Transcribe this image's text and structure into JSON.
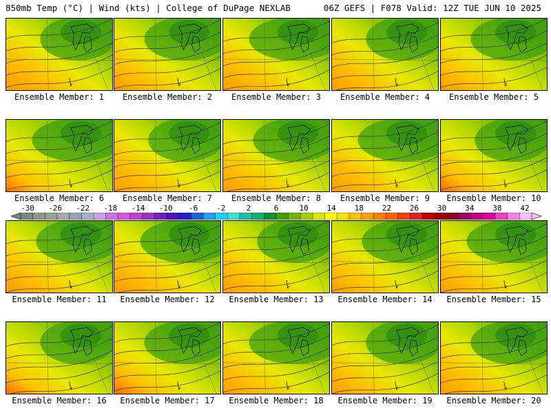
{
  "header": {
    "left": "850mb Temp (°C) | Wind (kts) | College of DuPage NEXLAB",
    "right": "06Z GEFS | F078 Valid: 12Z TUE JUN 10 2025"
  },
  "caption_prefix": "Ensemble Member:",
  "members": [
    "1",
    "2",
    "3",
    "4",
    "5",
    "6",
    "7",
    "8",
    "9",
    "10",
    "11",
    "12",
    "13",
    "14",
    "15",
    "16",
    "17",
    "18",
    "19",
    "20"
  ],
  "colorbar": {
    "labels": [
      "-30",
      "-26",
      "-22",
      "-18",
      "-14",
      "-10",
      "-6",
      "-2",
      "2",
      "6",
      "10",
      "14",
      "18",
      "22",
      "26",
      "30",
      "34",
      "38",
      "42"
    ],
    "colors": [
      "#7a8a7a",
      "#8a9a8a",
      "#98a298",
      "#a8aaa8",
      "#9aa0b0",
      "#a8b0c8",
      "#c8a0e0",
      "#d070e0",
      "#e050e0",
      "#c040d0",
      "#a030c0",
      "#7020c0",
      "#5010c0",
      "#2020d0",
      "#2060e0",
      "#20a0f0",
      "#20d0f0",
      "#40e0d0",
      "#20c0a0",
      "#10b070",
      "#109030",
      "#40a000",
      "#70b800",
      "#a0d000",
      "#d8e800",
      "#ffff00",
      "#ffe000",
      "#ffc000",
      "#ffa000",
      "#ff8000",
      "#ff6000",
      "#f04000",
      "#e02020",
      "#c00000",
      "#a00000",
      "#900020",
      "#a00060",
      "#c00080",
      "#e000a0",
      "#f040c0",
      "#ff80e0",
      "#ffc0ff"
    ]
  }
}
